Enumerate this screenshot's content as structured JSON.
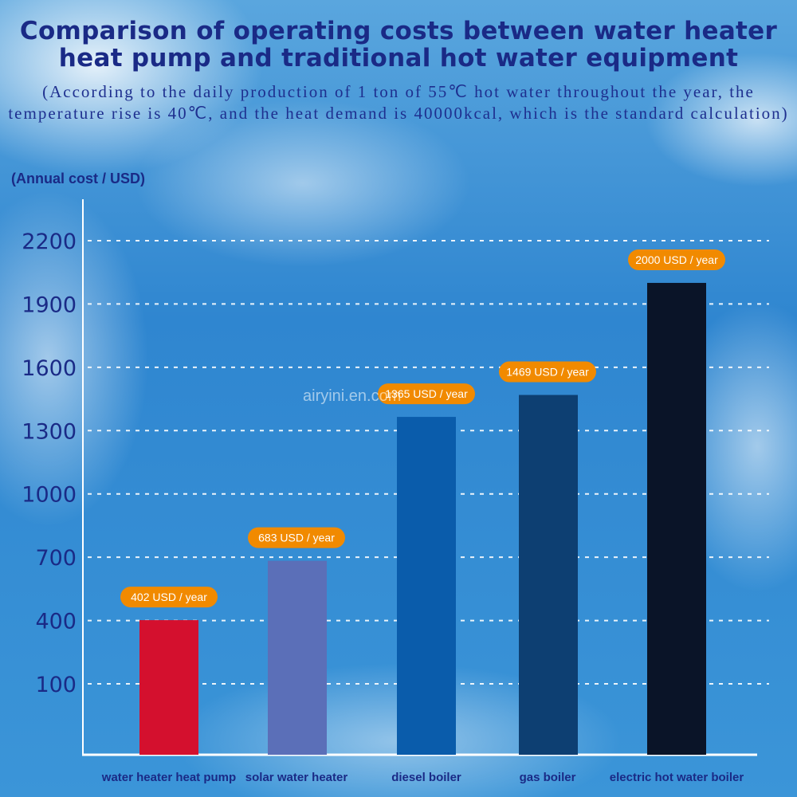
{
  "chart_data": {
    "type": "bar",
    "title": "Comparison of operating costs between water heater heat pump and traditional hot water equipment",
    "subtitle": "(According to the daily production of 1 ton of 55℃ hot water throughout the year, the temperature rise is 40℃, and the heat demand is 40000kcal, which is the standard calculation)",
    "ylabel": "(Annual cost / USD)",
    "xlabel": "",
    "categories": [
      "water heater heat pump",
      "solar water heater",
      "diesel boiler",
      "gas boiler",
      "electric hot water boiler"
    ],
    "values": [
      402,
      683,
      1365,
      1469,
      2000
    ],
    "data_labels": [
      "402 USD / year",
      "683 USD / year",
      "1365 USD / year",
      "1469 USD / year",
      "2000 USD / year"
    ],
    "bar_colors": [
      "#d4102e",
      "#5b6fb8",
      "#0a5cab",
      "#0d3f72",
      "#0a1428"
    ],
    "label_color": "#f18a00",
    "yticks": [
      100,
      400,
      700,
      1000,
      1300,
      1600,
      1900,
      2200
    ],
    "ylim": [
      -236,
      2200
    ],
    "grid": true,
    "watermark": "airyini.en.alibaba.com"
  }
}
